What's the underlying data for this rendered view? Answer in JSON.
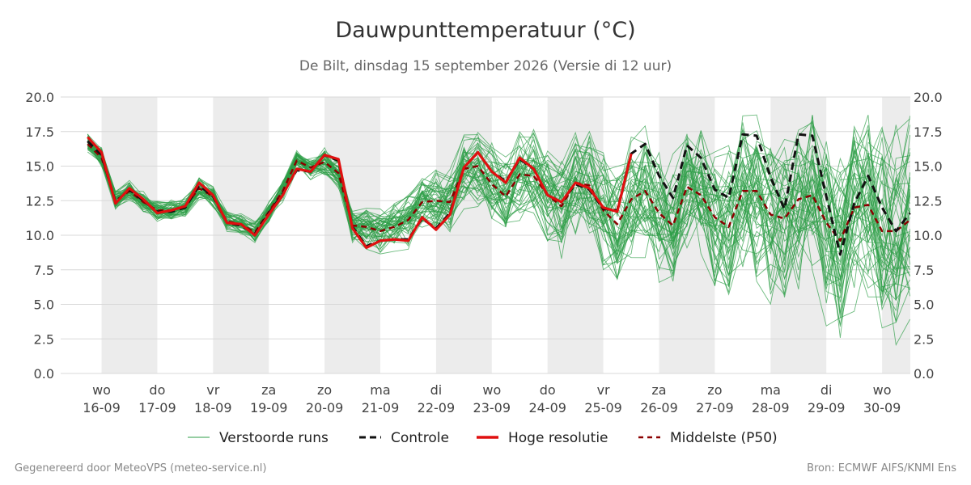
{
  "title": "Dauwpunttemperatuur (°C)",
  "subtitle": "De Bilt, dinsdag 15 september 2026 (Versie di 12 uur)",
  "footer_left": "Gegenereerd door MeteoVPS (meteo-service.nl)",
  "footer_right": "Bron: ECMWF AIFS/KNMI Ens",
  "colors": {
    "ensemble": "#2e9e47",
    "control": "#111111",
    "hires": "#e01010",
    "median": "#8b0000",
    "weekend_shade": "#ececec",
    "grid": "#d8d8d8"
  },
  "chart_data": {
    "type": "line",
    "xlabel": "",
    "ylabel": "",
    "x_unit": "days",
    "x_range": [
      -0.25,
      14.5
    ],
    "ylim": [
      0,
      20
    ],
    "yticks": [
      "0.0",
      "2.5",
      "5.0",
      "7.5",
      "10.0",
      "12.5",
      "15.0",
      "17.5",
      "20.0"
    ],
    "grid": true,
    "legend_position": "bottom",
    "day_labels": [
      {
        "day": "wo",
        "date": "16-09"
      },
      {
        "day": "do",
        "date": "17-09"
      },
      {
        "day": "vr",
        "date": "18-09"
      },
      {
        "day": "za",
        "date": "19-09"
      },
      {
        "day": "zo",
        "date": "20-09"
      },
      {
        "day": "ma",
        "date": "21-09"
      },
      {
        "day": "di",
        "date": "22-09"
      },
      {
        "day": "wo",
        "date": "23-09"
      },
      {
        "day": "do",
        "date": "24-09"
      },
      {
        "day": "vr",
        "date": "25-09"
      },
      {
        "day": "za",
        "date": "26-09"
      },
      {
        "day": "zo",
        "date": "27-09"
      },
      {
        "day": "ma",
        "date": "28-09"
      },
      {
        "day": "di",
        "date": "29-09"
      },
      {
        "day": "wo",
        "date": "30-09"
      }
    ],
    "shaded_days": [
      0,
      2,
      4,
      6,
      8,
      10,
      12,
      14
    ],
    "legend": [
      {
        "key": "ensemble",
        "label": "Verstoorde runs"
      },
      {
        "key": "control",
        "label": "Controle"
      },
      {
        "key": "hires",
        "label": "Hoge resolutie"
      },
      {
        "key": "median",
        "label": "Middelste (P50)"
      }
    ],
    "series": [
      {
        "key": "hires",
        "name": "Hoge resolutie",
        "x": [
          -0.25,
          0,
          0.25,
          0.5,
          0.75,
          1,
          1.25,
          1.5,
          1.75,
          2,
          2.25,
          2.5,
          2.75,
          3,
          3.25,
          3.5,
          3.75,
          4,
          4.25,
          4.5,
          4.75,
          5,
          5.25,
          5.5,
          5.75,
          6,
          6.25,
          6.5,
          6.75,
          7,
          7.25,
          7.5,
          7.75,
          8,
          8.25,
          8.5,
          8.75,
          9,
          9.25,
          9.5
        ],
        "y": [
          17.1,
          16.0,
          12.3,
          13.4,
          12.6,
          11.6,
          11.8,
          12.1,
          13.8,
          12.9,
          10.9,
          10.8,
          10.0,
          11.5,
          12.9,
          14.8,
          14.6,
          15.8,
          15.5,
          10.5,
          9.1,
          9.6,
          9.7,
          9.6,
          11.3,
          10.4,
          11.5,
          14.9,
          16.0,
          14.6,
          13.8,
          15.6,
          14.8,
          12.9,
          12.4,
          13.8,
          13.4,
          12.0,
          11.7,
          15.9
        ]
      },
      {
        "key": "control",
        "name": "Controle",
        "x": [
          -0.25,
          0,
          0.25,
          0.5,
          0.75,
          1,
          1.25,
          1.5,
          1.75,
          2,
          2.25,
          2.5,
          2.75,
          3,
          3.25,
          3.5,
          3.75,
          4,
          4.25,
          4.5,
          4.75,
          5,
          5.25,
          5.5,
          5.75,
          6,
          6.25,
          6.5,
          6.75,
          7,
          7.25,
          7.5,
          7.75,
          8,
          8.25,
          8.5,
          8.75,
          9,
          9.25,
          9.5,
          9.75,
          10,
          10.25,
          10.5,
          10.75,
          11,
          11.25,
          11.5,
          11.75,
          12,
          12.25,
          12.5,
          12.75,
          13,
          13.25,
          13.5,
          13.75,
          14,
          14.25,
          14.5
        ],
        "y": [
          16.8,
          15.8,
          12.4,
          13.3,
          12.5,
          11.7,
          11.7,
          12.0,
          13.6,
          12.8,
          10.9,
          10.7,
          10.1,
          11.6,
          13.0,
          14.7,
          14.6,
          15.8,
          15.4,
          10.6,
          9.2,
          9.6,
          9.7,
          9.7,
          11.2,
          10.5,
          11.6,
          14.9,
          16.0,
          14.6,
          13.9,
          15.5,
          14.8,
          12.9,
          12.4,
          13.7,
          13.3,
          11.9,
          11.8,
          15.9,
          16.6,
          14.3,
          12.7,
          16.5,
          15.6,
          13.3,
          12.7,
          17.3,
          17.2,
          14.2,
          11.9,
          17.3,
          17.2,
          12.8,
          8.6,
          12.3,
          14.3,
          12.0,
          10.3,
          11.6
        ]
      },
      {
        "key": "median",
        "name": "Middelste (P50)",
        "x": [
          -0.25,
          0,
          0.25,
          0.5,
          0.75,
          1,
          1.25,
          1.5,
          1.75,
          2,
          2.25,
          2.5,
          2.75,
          3,
          3.25,
          3.5,
          3.75,
          4,
          4.25,
          4.5,
          4.75,
          5,
          5.25,
          5.5,
          5.75,
          6,
          6.25,
          6.5,
          6.75,
          7,
          7.25,
          7.5,
          7.75,
          8,
          8.25,
          8.5,
          8.75,
          9,
          9.25,
          9.5,
          9.75,
          10,
          10.25,
          10.5,
          10.75,
          11,
          11.25,
          11.5,
          11.75,
          12,
          12.25,
          12.5,
          12.75,
          13,
          13.25,
          13.5,
          13.75,
          14,
          14.25,
          14.5
        ],
        "y": [
          16.6,
          15.6,
          12.5,
          13.2,
          12.4,
          11.8,
          11.8,
          12.1,
          13.4,
          12.8,
          11.0,
          10.8,
          10.2,
          11.7,
          13.2,
          15.4,
          14.9,
          15.3,
          14.5,
          10.7,
          10.6,
          10.3,
          10.6,
          11.1,
          12.4,
          12.5,
          12.4,
          14.8,
          15.0,
          13.7,
          12.8,
          14.4,
          14.3,
          12.9,
          12.1,
          13.8,
          13.6,
          11.8,
          10.8,
          12.6,
          13.2,
          11.6,
          10.7,
          13.5,
          12.9,
          11.3,
          10.6,
          13.2,
          13.2,
          11.5,
          11.2,
          12.6,
          12.9,
          10.9,
          9.6,
          12.0,
          12.2,
          10.3,
          10.3,
          11.1
        ]
      }
    ]
  }
}
